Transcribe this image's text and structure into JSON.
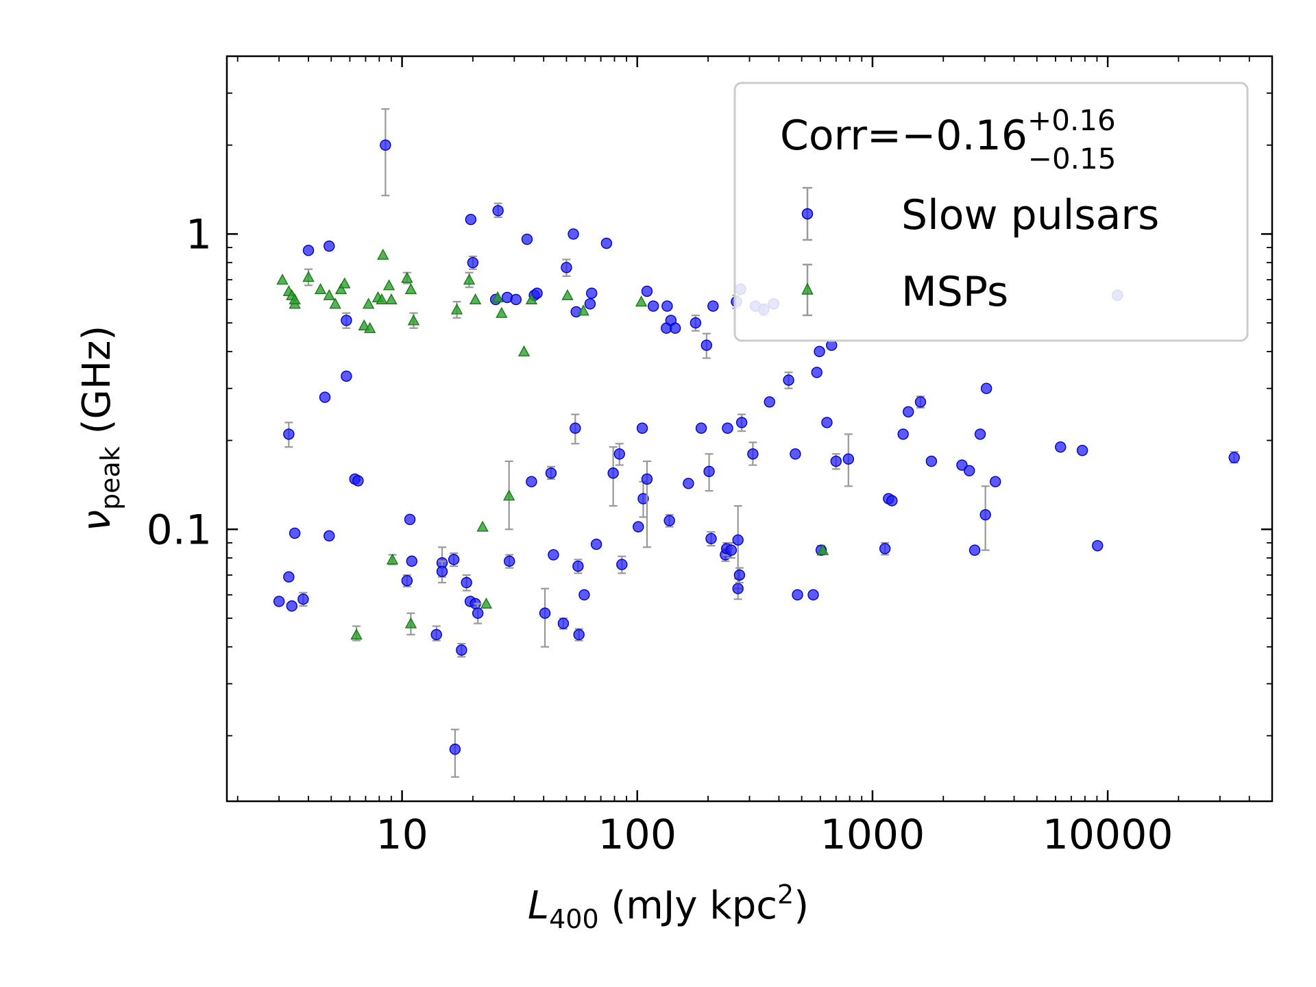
{
  "chart_data": {
    "type": "scatter",
    "xscale": "log",
    "yscale": "log",
    "xlim": [
      1.8,
      50000
    ],
    "ylim": [
      0.012,
      4.0
    ],
    "xlabel": "L",
    "xlabel_sub": "400",
    "xlabel_rest": " (mJy kpc",
    "xlabel_sup": "2",
    "xlabel_end": ")",
    "ylabel": "ν",
    "ylabel_sub": "peak",
    "ylabel_rest": " (GHz)",
    "xticks": [
      10,
      100,
      1000,
      10000
    ],
    "xtick_labels": [
      "10",
      "100",
      "1000",
      "10000"
    ],
    "yticks": [
      0.1,
      1
    ],
    "ytick_labels": [
      "0.1",
      "1"
    ],
    "grid": false,
    "legend_position": "top-right",
    "legend": {
      "corr_main": "Corr=−0.16",
      "corr_sup": "+0.16",
      "corr_sub": "−0.15"
    },
    "colors": {
      "slow": "#1a1aff",
      "msp": "#2ca02c",
      "errorbar": "#999999"
    },
    "series": [
      {
        "name": "Slow pulsars",
        "marker": "circle",
        "points": [
          {
            "x": 8.5,
            "y": 2.0,
            "ylo": 1.35,
            "yhi": 2.65
          },
          {
            "x": 3.0,
            "y": 0.057
          },
          {
            "x": 3.3,
            "y": 0.069
          },
          {
            "x": 3.4,
            "y": 0.055
          },
          {
            "x": 3.5,
            "y": 0.097
          },
          {
            "x": 3.3,
            "y": 0.21,
            "ylo": 0.19,
            "yhi": 0.23
          },
          {
            "x": 3.8,
            "y": 0.058,
            "ylo": 0.055,
            "yhi": 0.061
          },
          {
            "x": 4.0,
            "y": 0.88
          },
          {
            "x": 4.7,
            "y": 0.28
          },
          {
            "x": 4.9,
            "y": 0.095
          },
          {
            "x": 4.9,
            "y": 0.91
          },
          {
            "x": 5.8,
            "y": 0.51,
            "ylo": 0.48,
            "yhi": 0.54
          },
          {
            "x": 5.8,
            "y": 0.33
          },
          {
            "x": 6.3,
            "y": 0.148
          },
          {
            "x": 6.5,
            "y": 0.146
          },
          {
            "x": 10.5,
            "y": 0.067,
            "ylo": 0.064,
            "yhi": 0.07
          },
          {
            "x": 10.8,
            "y": 0.108
          },
          {
            "x": 11.0,
            "y": 0.078
          },
          {
            "x": 14.0,
            "y": 0.044,
            "ylo": 0.042,
            "yhi": 0.047
          },
          {
            "x": 14.8,
            "y": 0.077,
            "ylo": 0.069,
            "yhi": 0.087
          },
          {
            "x": 14.8,
            "y": 0.072,
            "ylo": 0.066,
            "yhi": 0.078
          },
          {
            "x": 16.6,
            "y": 0.079,
            "ylo": 0.075,
            "yhi": 0.083
          },
          {
            "x": 16.8,
            "y": 0.018,
            "ylo": 0.0145,
            "yhi": 0.021
          },
          {
            "x": 17.9,
            "y": 0.039,
            "ylo": 0.037,
            "yhi": 0.041
          },
          {
            "x": 18.8,
            "y": 0.066,
            "ylo": 0.062,
            "yhi": 0.07
          },
          {
            "x": 19.5,
            "y": 0.057
          },
          {
            "x": 19.6,
            "y": 1.12
          },
          {
            "x": 20.0,
            "y": 0.8,
            "ylo": 0.76,
            "yhi": 0.84
          },
          {
            "x": 20.5,
            "y": 0.056
          },
          {
            "x": 21.0,
            "y": 0.052,
            "ylo": 0.048,
            "yhi": 0.056
          },
          {
            "x": 25.0,
            "y": 0.6
          },
          {
            "x": 25.6,
            "y": 1.2,
            "ylo": 1.14,
            "yhi": 1.27
          },
          {
            "x": 28.0,
            "y": 0.61
          },
          {
            "x": 28.6,
            "y": 0.078,
            "ylo": 0.074,
            "yhi": 0.082
          },
          {
            "x": 30.5,
            "y": 0.6
          },
          {
            "x": 34.0,
            "y": 0.96
          },
          {
            "x": 35.5,
            "y": 0.145
          },
          {
            "x": 36.5,
            "y": 0.62
          },
          {
            "x": 37.5,
            "y": 0.63
          },
          {
            "x": 40.5,
            "y": 0.052,
            "ylo": 0.04,
            "yhi": 0.063
          },
          {
            "x": 43.0,
            "y": 0.155,
            "ylo": 0.148,
            "yhi": 0.163
          },
          {
            "x": 44.0,
            "y": 0.082
          },
          {
            "x": 48.5,
            "y": 0.048,
            "ylo": 0.046,
            "yhi": 0.05
          },
          {
            "x": 50.0,
            "y": 0.77,
            "ylo": 0.72,
            "yhi": 0.82
          },
          {
            "x": 53.5,
            "y": 1.0
          },
          {
            "x": 54.5,
            "y": 0.22,
            "ylo": 0.195,
            "yhi": 0.245
          },
          {
            "x": 55.0,
            "y": 0.545
          },
          {
            "x": 56.0,
            "y": 0.075,
            "ylo": 0.071,
            "yhi": 0.079
          },
          {
            "x": 56.5,
            "y": 0.044,
            "ylo": 0.042,
            "yhi": 0.046
          },
          {
            "x": 59.5,
            "y": 0.06
          },
          {
            "x": 63.0,
            "y": 0.58
          },
          {
            "x": 64.0,
            "y": 0.63
          },
          {
            "x": 67.0,
            "y": 0.089
          },
          {
            "x": 74.0,
            "y": 0.93
          },
          {
            "x": 79.0,
            "y": 0.155,
            "ylo": 0.12,
            "yhi": 0.19
          },
          {
            "x": 84.0,
            "y": 0.18,
            "ylo": 0.165,
            "yhi": 0.195
          },
          {
            "x": 86.0,
            "y": 0.076,
            "ylo": 0.071,
            "yhi": 0.081
          },
          {
            "x": 101.0,
            "y": 0.102
          },
          {
            "x": 105.0,
            "y": 0.22
          },
          {
            "x": 106.0,
            "y": 0.127,
            "ylo": 0.11,
            "yhi": 0.145
          },
          {
            "x": 110.0,
            "y": 0.148,
            "ylo": 0.087,
            "yhi": 0.17
          },
          {
            "x": 110.0,
            "y": 0.64
          },
          {
            "x": 117.0,
            "y": 0.57
          },
          {
            "x": 133.0,
            "y": 0.48
          },
          {
            "x": 134.0,
            "y": 0.57
          },
          {
            "x": 137.0,
            "y": 0.107,
            "ylo": 0.102,
            "yhi": 0.112
          },
          {
            "x": 139.0,
            "y": 0.51
          },
          {
            "x": 145.0,
            "y": 0.48
          },
          {
            "x": 165.0,
            "y": 0.143
          },
          {
            "x": 177.0,
            "y": 0.5,
            "ylo": 0.47,
            "yhi": 0.53
          },
          {
            "x": 187.0,
            "y": 0.22
          },
          {
            "x": 197.0,
            "y": 0.42,
            "ylo": 0.38,
            "yhi": 0.46
          },
          {
            "x": 202.0,
            "y": 0.157,
            "ylo": 0.135,
            "yhi": 0.18
          },
          {
            "x": 206.0,
            "y": 0.093,
            "ylo": 0.088,
            "yhi": 0.098
          },
          {
            "x": 210.0,
            "y": 0.57
          },
          {
            "x": 237.0,
            "y": 0.082,
            "ylo": 0.078,
            "yhi": 0.086
          },
          {
            "x": 240.0,
            "y": 0.086,
            "ylo": 0.082,
            "yhi": 0.09
          },
          {
            "x": 242.0,
            "y": 0.22
          },
          {
            "x": 251.0,
            "y": 0.085,
            "ylo": 0.08,
            "yhi": 0.09
          },
          {
            "x": 264.0,
            "y": 0.59,
            "ylo": 0.56,
            "yhi": 0.62
          },
          {
            "x": 268.0,
            "y": 0.092,
            "ylo": 0.063,
            "yhi": 0.12
          },
          {
            "x": 268.0,
            "y": 0.063,
            "ylo": 0.058,
            "yhi": 0.068
          },
          {
            "x": 272.0,
            "y": 0.07,
            "ylo": 0.066,
            "yhi": 0.074
          },
          {
            "x": 275.0,
            "y": 0.65
          },
          {
            "x": 278.0,
            "y": 0.23,
            "ylo": 0.215,
            "yhi": 0.245
          },
          {
            "x": 310.0,
            "y": 0.18,
            "ylo": 0.165,
            "yhi": 0.197
          },
          {
            "x": 318.0,
            "y": 0.57
          },
          {
            "x": 345.0,
            "y": 0.555,
            "ylo": 0.53,
            "yhi": 0.58
          },
          {
            "x": 365.0,
            "y": 0.27
          },
          {
            "x": 380.0,
            "y": 0.58
          },
          {
            "x": 440.0,
            "y": 0.32,
            "ylo": 0.3,
            "yhi": 0.34
          },
          {
            "x": 470.0,
            "y": 0.18
          },
          {
            "x": 480.0,
            "y": 0.06
          },
          {
            "x": 560.0,
            "y": 0.06
          },
          {
            "x": 580.0,
            "y": 0.34
          },
          {
            "x": 595.0,
            "y": 0.4
          },
          {
            "x": 605.0,
            "y": 0.085,
            "ylo": 0.082,
            "yhi": 0.088
          },
          {
            "x": 640.0,
            "y": 0.23
          },
          {
            "x": 670.0,
            "y": 0.42
          },
          {
            "x": 700.0,
            "y": 0.17,
            "ylo": 0.16,
            "yhi": 0.18
          },
          {
            "x": 790.0,
            "y": 0.173,
            "ylo": 0.14,
            "yhi": 0.21
          },
          {
            "x": 1130.0,
            "y": 0.086,
            "ylo": 0.082,
            "yhi": 0.09
          },
          {
            "x": 1170.0,
            "y": 0.127
          },
          {
            "x": 1210.0,
            "y": 0.125
          },
          {
            "x": 1350.0,
            "y": 0.21
          },
          {
            "x": 1420.0,
            "y": 0.25
          },
          {
            "x": 1600.0,
            "y": 0.27,
            "ylo": 0.258,
            "yhi": 0.282
          },
          {
            "x": 1780.0,
            "y": 0.17
          },
          {
            "x": 2400.0,
            "y": 0.165
          },
          {
            "x": 2580.0,
            "y": 0.158
          },
          {
            "x": 2720.0,
            "y": 0.085
          },
          {
            "x": 2870.0,
            "y": 0.21
          },
          {
            "x": 3020.0,
            "y": 0.112,
            "ylo": 0.085,
            "yhi": 0.14
          },
          {
            "x": 3050.0,
            "y": 0.3
          },
          {
            "x": 3330.0,
            "y": 0.145
          },
          {
            "x": 6300.0,
            "y": 0.19
          },
          {
            "x": 7800.0,
            "y": 0.185
          },
          {
            "x": 9050.0,
            "y": 0.088
          },
          {
            "x": 11000.0,
            "y": 0.62
          },
          {
            "x": 34500.0,
            "y": 0.175,
            "ylo": 0.168,
            "yhi": 0.183
          }
        ]
      },
      {
        "name": "MSPs",
        "marker": "triangle",
        "points": [
          {
            "x": 3.1,
            "y": 0.7
          },
          {
            "x": 3.3,
            "y": 0.64
          },
          {
            "x": 3.4,
            "y": 0.62
          },
          {
            "x": 3.5,
            "y": 0.58
          },
          {
            "x": 3.5,
            "y": 0.6
          },
          {
            "x": 4.0,
            "y": 0.715,
            "ylo": 0.67,
            "yhi": 0.76
          },
          {
            "x": 4.5,
            "y": 0.65
          },
          {
            "x": 4.9,
            "y": 0.62
          },
          {
            "x": 5.2,
            "y": 0.58
          },
          {
            "x": 5.5,
            "y": 0.65
          },
          {
            "x": 5.7,
            "y": 0.68
          },
          {
            "x": 6.4,
            "y": 0.044,
            "ylo": 0.042,
            "yhi": 0.047
          },
          {
            "x": 6.9,
            "y": 0.49
          },
          {
            "x": 7.2,
            "y": 0.58
          },
          {
            "x": 7.3,
            "y": 0.48
          },
          {
            "x": 7.9,
            "y": 0.61
          },
          {
            "x": 8.2,
            "y": 0.6
          },
          {
            "x": 8.3,
            "y": 0.85
          },
          {
            "x": 8.8,
            "y": 0.67
          },
          {
            "x": 9.0,
            "y": 0.6
          },
          {
            "x": 9.1,
            "y": 0.079,
            "ylo": 0.076,
            "yhi": 0.082
          },
          {
            "x": 10.5,
            "y": 0.71,
            "ylo": 0.68,
            "yhi": 0.74
          },
          {
            "x": 10.9,
            "y": 0.65
          },
          {
            "x": 10.9,
            "y": 0.048,
            "ylo": 0.044,
            "yhi": 0.052
          },
          {
            "x": 11.2,
            "y": 0.51,
            "ylo": 0.48,
            "yhi": 0.54
          },
          {
            "x": 17.1,
            "y": 0.555,
            "ylo": 0.52,
            "yhi": 0.59
          },
          {
            "x": 19.3,
            "y": 0.7,
            "ylo": 0.66,
            "yhi": 0.74
          },
          {
            "x": 20.5,
            "y": 0.6
          },
          {
            "x": 22.0,
            "y": 0.102
          },
          {
            "x": 22.8,
            "y": 0.056
          },
          {
            "x": 25.5,
            "y": 0.61
          },
          {
            "x": 26.5,
            "y": 0.54
          },
          {
            "x": 28.5,
            "y": 0.13,
            "ylo": 0.1,
            "yhi": 0.17
          },
          {
            "x": 33.0,
            "y": 0.4
          },
          {
            "x": 35.5,
            "y": 0.6
          },
          {
            "x": 50.5,
            "y": 0.62
          },
          {
            "x": 59.0,
            "y": 0.55
          },
          {
            "x": 104.0,
            "y": 0.59
          },
          {
            "x": 615.0,
            "y": 0.085
          }
        ]
      }
    ]
  }
}
